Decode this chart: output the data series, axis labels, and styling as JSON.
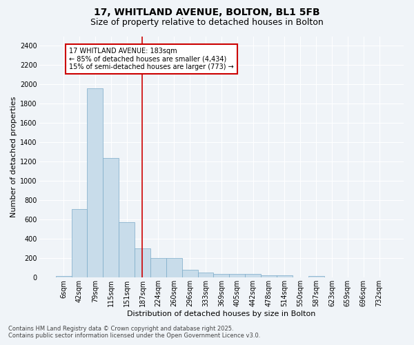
{
  "title_line1": "17, WHITLAND AVENUE, BOLTON, BL1 5FB",
  "title_line2": "Size of property relative to detached houses in Bolton",
  "xlabel": "Distribution of detached houses by size in Bolton",
  "ylabel": "Number of detached properties",
  "bar_color": "#c8dcea",
  "bar_edge_color": "#7aaac8",
  "categories": [
    "6sqm",
    "42sqm",
    "79sqm",
    "115sqm",
    "151sqm",
    "187sqm",
    "224sqm",
    "260sqm",
    "296sqm",
    "333sqm",
    "369sqm",
    "405sqm",
    "442sqm",
    "478sqm",
    "514sqm",
    "550sqm",
    "587sqm",
    "623sqm",
    "659sqm",
    "696sqm",
    "732sqm"
  ],
  "values": [
    15,
    710,
    1960,
    1240,
    575,
    305,
    200,
    200,
    80,
    50,
    40,
    40,
    35,
    25,
    20,
    0,
    15,
    0,
    0,
    0,
    0
  ],
  "ylim": [
    0,
    2500
  ],
  "yticks": [
    0,
    200,
    400,
    600,
    800,
    1000,
    1200,
    1400,
    1600,
    1800,
    2000,
    2200,
    2400
  ],
  "vline_x": 5,
  "vline_color": "#cc0000",
  "annotation_text": "17 WHITLAND AVENUE: 183sqm\n← 85% of detached houses are smaller (4,434)\n15% of semi-detached houses are larger (773) →",
  "annotation_box_facecolor": "#ffffff",
  "annotation_box_edgecolor": "#cc0000",
  "footer_line1": "Contains HM Land Registry data © Crown copyright and database right 2025.",
  "footer_line2": "Contains public sector information licensed under the Open Government Licence v3.0.",
  "fig_facecolor": "#f0f4f8",
  "plot_facecolor": "#f0f4f8",
  "grid_color": "#ffffff",
  "title_fontsize": 10,
  "subtitle_fontsize": 9,
  "ylabel_fontsize": 8,
  "xlabel_fontsize": 8,
  "tick_fontsize": 7,
  "annot_fontsize": 7,
  "footer_fontsize": 6
}
